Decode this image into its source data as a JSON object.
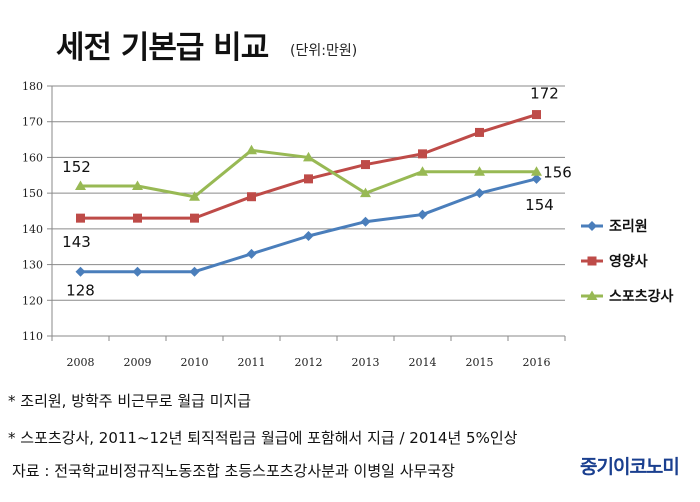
{
  "title": "세전 기본급 비교",
  "unit": "(단위:만원)",
  "notes": [
    "* 조리원, 방학주 비근무로 월급 미지급",
    "* 스포츠강사, 2011~12년 퇴직적립금 월급에 포함해서 지급 / 2014년 5%인상"
  ],
  "source": "자료 : 전국학교비정규직노동조합 초등스포츠강사분과 이병일 사무국장",
  "logo": "중기이코노미",
  "chart_data": {
    "type": "line",
    "x": [
      "2008",
      "2009",
      "2010",
      "2011",
      "2012",
      "2013",
      "2014",
      "2015",
      "2016"
    ],
    "ylim": [
      110,
      180
    ],
    "yticks": [
      110,
      120,
      130,
      140,
      150,
      160,
      170,
      180
    ],
    "grid": true,
    "legend": "right",
    "series": [
      {
        "name": "조리원",
        "values": [
          128,
          128,
          128,
          133,
          138,
          142,
          144,
          150,
          154
        ],
        "color": "#4a7ebb",
        "marker": "diamond",
        "labels": [
          {
            "index": 0,
            "text": "128"
          },
          {
            "index": 8,
            "text": "154"
          }
        ]
      },
      {
        "name": "영양사",
        "values": [
          143,
          143,
          143,
          149,
          154,
          158,
          161,
          167,
          172
        ],
        "color": "#be4b48",
        "marker": "square",
        "labels": [
          {
            "index": 0,
            "text": "143"
          },
          {
            "index": 8,
            "text": "172"
          }
        ]
      },
      {
        "name": "스포츠강사",
        "values": [
          152,
          152,
          149,
          162,
          160,
          150,
          156,
          156,
          156
        ],
        "color": "#98b954",
        "marker": "triangle",
        "labels": [
          {
            "index": 0,
            "text": "152"
          },
          {
            "index": 8,
            "text": "156"
          }
        ]
      }
    ]
  }
}
